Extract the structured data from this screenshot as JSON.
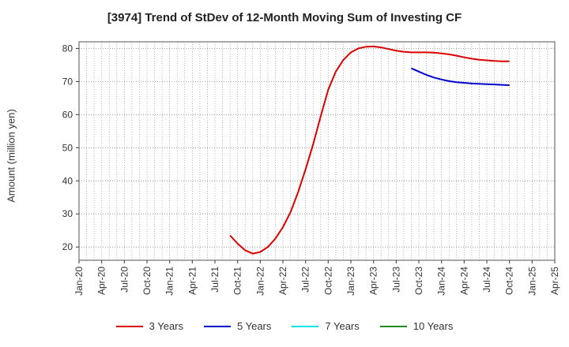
{
  "chart_data": {
    "type": "line",
    "title": "[3974]  Trend of StDev of 12-Month Moving Sum of Investing CF",
    "xlabel": "",
    "ylabel": "Amount (million yen)",
    "ylim": [
      16,
      82
    ],
    "yticks": [
      20,
      30,
      40,
      50,
      60,
      70,
      80
    ],
    "x_ticks": [
      "Jan-20",
      "Apr-20",
      "Jul-20",
      "Oct-20",
      "Jan-21",
      "Apr-21",
      "Jul-21",
      "Oct-21",
      "Jan-22",
      "Apr-22",
      "Jul-22",
      "Oct-22",
      "Jan-23",
      "Apr-23",
      "Jul-23",
      "Oct-23",
      "Jan-24",
      "Apr-24",
      "Jul-24",
      "Oct-24",
      "Jan-25",
      "Apr-25"
    ],
    "grid": true,
    "legend_position": "bottom",
    "series": [
      {
        "name": "3 Years",
        "color": "#dd0000",
        "points": [
          [
            "Sep-21",
            23.5
          ],
          [
            "Oct-21",
            21.0
          ],
          [
            "Nov-21",
            19.0
          ],
          [
            "Dec-21",
            18.0
          ],
          [
            "Jan-22",
            18.5
          ],
          [
            "Feb-22",
            20.0
          ],
          [
            "Mar-22",
            22.5
          ],
          [
            "Apr-22",
            26.0
          ],
          [
            "May-22",
            30.5
          ],
          [
            "Jun-22",
            36.5
          ],
          [
            "Jul-22",
            43.5
          ],
          [
            "Aug-22",
            51.0
          ],
          [
            "Sep-22",
            59.5
          ],
          [
            "Oct-22",
            67.5
          ],
          [
            "Nov-22",
            73.0
          ],
          [
            "Dec-22",
            76.5
          ],
          [
            "Jan-23",
            78.8
          ],
          [
            "Feb-23",
            80.0
          ],
          [
            "Mar-23",
            80.5
          ],
          [
            "Apr-23",
            80.6
          ],
          [
            "May-23",
            80.3
          ],
          [
            "Jun-23",
            79.8
          ],
          [
            "Jul-23",
            79.3
          ],
          [
            "Aug-23",
            79.0
          ],
          [
            "Sep-23",
            78.8
          ],
          [
            "Oct-23",
            78.8
          ],
          [
            "Nov-23",
            78.8
          ],
          [
            "Dec-23",
            78.7
          ],
          [
            "Jan-24",
            78.5
          ],
          [
            "Feb-24",
            78.2
          ],
          [
            "Mar-24",
            77.8
          ],
          [
            "Apr-24",
            77.3
          ],
          [
            "May-24",
            76.9
          ],
          [
            "Jun-24",
            76.6
          ],
          [
            "Jul-24",
            76.4
          ],
          [
            "Aug-24",
            76.2
          ],
          [
            "Sep-24",
            76.1
          ],
          [
            "Oct-24",
            76.1
          ]
        ]
      },
      {
        "name": "5 Years",
        "color": "#0000cc",
        "points": [
          [
            "Sep-23",
            74.0
          ],
          [
            "Oct-23",
            73.0
          ],
          [
            "Nov-23",
            72.0
          ],
          [
            "Dec-23",
            71.2
          ],
          [
            "Jan-24",
            70.6
          ],
          [
            "Feb-24",
            70.1
          ],
          [
            "Mar-24",
            69.8
          ],
          [
            "Apr-24",
            69.6
          ],
          [
            "May-24",
            69.4
          ],
          [
            "Jun-24",
            69.3
          ],
          [
            "Jul-24",
            69.2
          ],
          [
            "Aug-24",
            69.1
          ],
          [
            "Sep-24",
            69.0
          ],
          [
            "Oct-24",
            68.9
          ]
        ]
      },
      {
        "name": "7 Years",
        "color": "#00e5ee",
        "points": []
      },
      {
        "name": "10 Years",
        "color": "#228b22",
        "points": []
      }
    ]
  }
}
